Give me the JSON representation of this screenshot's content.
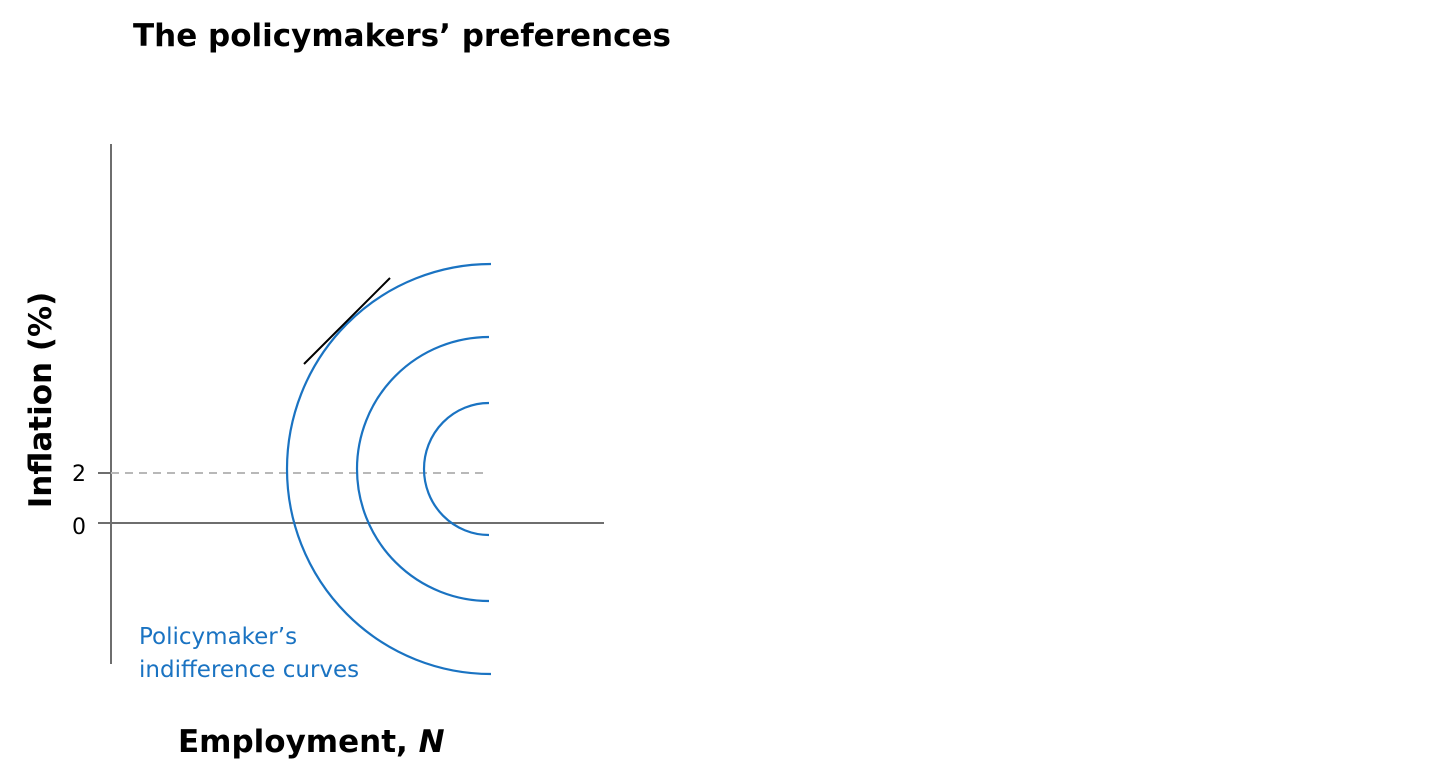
{
  "title": "The policymakers’ preferences",
  "colors": {
    "curve": "#1a73c2",
    "axis": "#6e6e6e",
    "reference_line": "#b8b8b8",
    "tangent": "#000000"
  },
  "axes": {
    "x_label_main": "Employment, ",
    "x_label_var": "N",
    "y_label": "Inflation (%)",
    "y_ticks": [
      {
        "value": 2,
        "label": "2"
      },
      {
        "value": 0,
        "label": "0"
      }
    ]
  },
  "reference_line": {
    "inflation_value": 2,
    "style": "dashed"
  },
  "indifference_curves": {
    "label_line1": "Policymaker’s",
    "label_line2": "indifference curves",
    "count": 3,
    "shape": "semicircle-open-right",
    "centered_on_inflation": 2
  },
  "tangent_line": {
    "touches": "outermost-curve",
    "position": "upper-left"
  }
}
